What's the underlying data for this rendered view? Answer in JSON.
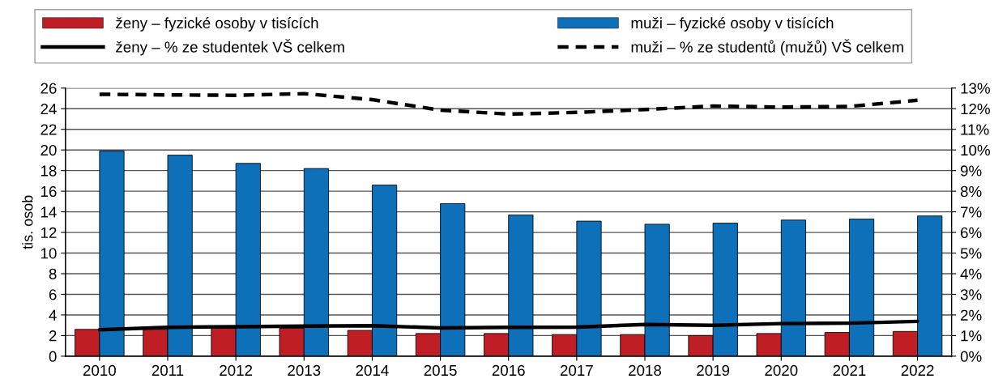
{
  "chart_data": {
    "type": "bar",
    "ylabel": "tis. osob",
    "categories": [
      "2010",
      "2011",
      "2012",
      "2013",
      "2014",
      "2015",
      "2016",
      "2017",
      "2018",
      "2019",
      "2020",
      "2021",
      "2022"
    ],
    "series": [
      {
        "name": "ženy – fyzické osoby v tisících",
        "color": "#be1e24",
        "values": [
          2.6,
          2.6,
          2.7,
          2.7,
          2.5,
          2.2,
          2.2,
          2.1,
          2.1,
          2.0,
          2.2,
          2.3,
          2.4
        ]
      },
      {
        "name": "muži – fyzické osoby v tisících",
        "color": "#0e70b8",
        "values": [
          19.9,
          19.5,
          18.7,
          18.2,
          16.6,
          14.8,
          13.7,
          13.1,
          12.8,
          12.9,
          13.2,
          13.3,
          13.6
        ]
      },
      {
        "name": "ženy – % ze studentek VŠ celkem",
        "type": "line",
        "axis": "y2",
        "color": "#000000",
        "line_style": "solid",
        "values": [
          1.28,
          1.4,
          1.43,
          1.46,
          1.48,
          1.37,
          1.4,
          1.41,
          1.54,
          1.5,
          1.58,
          1.6,
          1.69
        ]
      },
      {
        "name": "muži – % ze studentů (mužů) VŠ celkem",
        "type": "line",
        "axis": "y2",
        "color": "#000000",
        "line_style": "dashed",
        "values": [
          12.7,
          12.67,
          12.65,
          12.73,
          12.44,
          11.93,
          11.74,
          11.82,
          11.96,
          12.13,
          12.08,
          12.11,
          12.41
        ]
      }
    ],
    "ylim": [
      0,
      26
    ],
    "yticks": [
      0,
      2,
      4,
      6,
      8,
      10,
      12,
      14,
      16,
      18,
      20,
      22,
      24,
      26
    ],
    "y2lim": [
      0,
      13
    ],
    "y2ticks": [
      {
        "value": 0,
        "label": "0%"
      },
      {
        "value": 1,
        "label": "1%"
      },
      {
        "value": 2,
        "label": "2%"
      },
      {
        "value": 3,
        "label": "3%"
      },
      {
        "value": 4,
        "label": "4%"
      },
      {
        "value": 5,
        "label": "5%"
      },
      {
        "value": 6,
        "label": "6%"
      },
      {
        "value": 7,
        "label": "7%"
      },
      {
        "value": 8,
        "label": "8%"
      },
      {
        "value": 9,
        "label": "9%"
      },
      {
        "value": 10,
        "label": "10%"
      },
      {
        "value": 11,
        "label": "11%"
      },
      {
        "value": 12,
        "label": "12%"
      },
      {
        "value": 13,
        "label": "13%"
      }
    ],
    "grid": "y",
    "legend": "top",
    "marker": "none"
  }
}
